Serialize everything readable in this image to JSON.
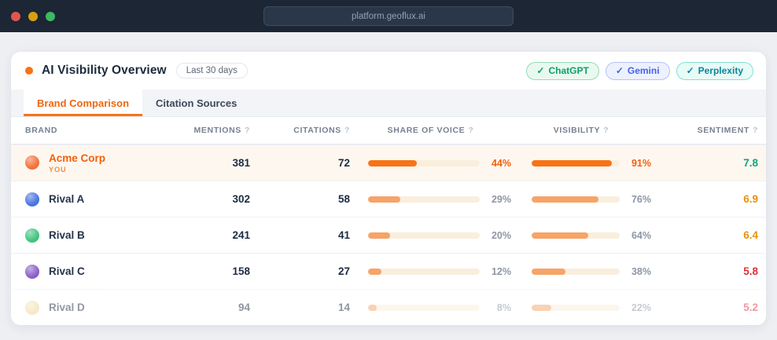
{
  "browser": {
    "url": "platform.geoflux.ai",
    "traffic_lights": {
      "close": "#e0564e",
      "minimize": "#d6a012",
      "maximize": "#3eb863"
    }
  },
  "header": {
    "title": "AI Visibility Overview",
    "period_label": "Last 30 days",
    "badges": [
      {
        "check": "✓",
        "label": "ChatGPT",
        "color": "#0e9f6e",
        "bg": "#e9f9f0",
        "border": "#93dcb4"
      },
      {
        "check": "✓",
        "label": "Gemini",
        "color": "#4263eb",
        "bg": "#edf1fe",
        "border": "#b5c2f8"
      },
      {
        "check": "✓",
        "label": "Perplexity",
        "color": "#0c8599",
        "bg": "#e7fbf7",
        "border": "#84e0cf"
      }
    ]
  },
  "tabs": [
    {
      "label": "Brand Comparison"
    },
    {
      "label": "Citation Sources"
    }
  ],
  "table": {
    "help_glyph": "?",
    "headers": [
      {
        "label": "BRAND"
      },
      {
        "label": "MENTIONS"
      },
      {
        "label": "CITATIONS"
      },
      {
        "label": "SHARE OF VOICE"
      },
      {
        "label": "VISIBILITY"
      },
      {
        "label": "SENTIMENT"
      }
    ],
    "rows": [
      {
        "brand": "Acme Corp",
        "tag": "YOU",
        "avatar_color": "#f4713a",
        "mentions": "381",
        "citations": "72",
        "share_pct": 44,
        "share_label": "44%",
        "visibility_pct": 91,
        "visibility_label": "91%",
        "bar_color": "#f97316",
        "sentiment": "7.8",
        "sentiment_color": "#0ca678"
      },
      {
        "brand": "Rival A",
        "avatar_color": "#4a74e0",
        "mentions": "302",
        "citations": "58",
        "share_pct": 29,
        "share_label": "29%",
        "visibility_pct": 76,
        "visibility_label": "76%",
        "bar_color": "#f6a468",
        "sentiment": "6.9",
        "sentiment_color": "#e8920b"
      },
      {
        "brand": "Rival B",
        "avatar_color": "#3fc47d",
        "mentions": "241",
        "citations": "41",
        "share_pct": 20,
        "share_label": "20%",
        "visibility_pct": 64,
        "visibility_label": "64%",
        "bar_color": "#f6a468",
        "sentiment": "6.4",
        "sentiment_color": "#e8920b"
      },
      {
        "brand": "Rival C",
        "avatar_color": "#8a5fc8",
        "mentions": "158",
        "citations": "27",
        "share_pct": 12,
        "share_label": "12%",
        "visibility_pct": 38,
        "visibility_label": "38%",
        "bar_color": "#f6a468",
        "sentiment": "5.8",
        "sentiment_color": "#e22f36"
      },
      {
        "brand": "Rival D",
        "avatar_color": "#efd48e",
        "mentions": "94",
        "citations": "14",
        "share_pct": 8,
        "share_label": "8%",
        "visibility_pct": 22,
        "visibility_label": "22%",
        "bar_color": "#f6a468",
        "sentiment": "5.2",
        "sentiment_color": "#e0344a"
      }
    ]
  }
}
